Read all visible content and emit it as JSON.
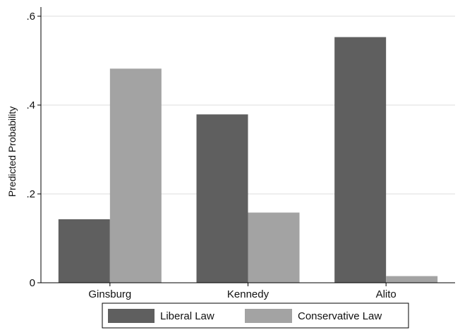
{
  "chart_data": {
    "type": "bar",
    "title": "",
    "xlabel": "",
    "ylabel": "Predicted Probability",
    "categories": [
      "Ginsburg",
      "Kennedy",
      "Alito"
    ],
    "series": [
      {
        "name": "Liberal Law",
        "color": "#5f5f5f",
        "values": [
          0.143,
          0.379,
          0.553
        ]
      },
      {
        "name": "Conservative Law",
        "color": "#a3a3a3",
        "values": [
          0.482,
          0.158,
          0.015
        ]
      }
    ],
    "ylim": [
      0,
      0.6
    ],
    "yticks": [
      0,
      0.2,
      0.4,
      0.6
    ],
    "ytick_labels": [
      "0",
      ".2",
      ".4",
      ".6"
    ],
    "grid": true,
    "legend_position": "bottom"
  }
}
